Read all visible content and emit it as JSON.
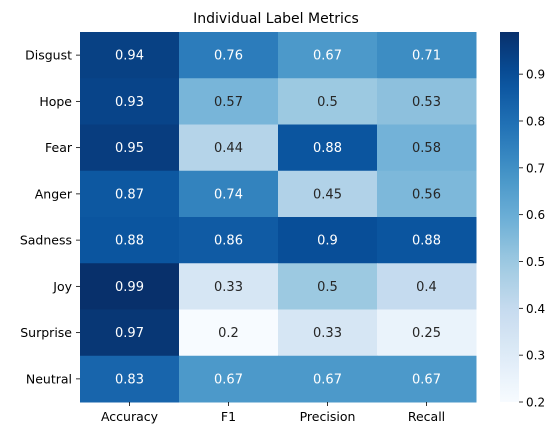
{
  "chart_data": {
    "type": "heatmap",
    "title": "Individual Label Metrics",
    "xlabel": "",
    "ylabel": "",
    "columns": [
      "Accuracy",
      "F1",
      "Precision",
      "Recall"
    ],
    "rows": [
      "Disgust",
      "Hope",
      "Fear",
      "Anger",
      "Sadness",
      "Joy",
      "Surprise",
      "Neutral"
    ],
    "values": [
      [
        0.94,
        0.76,
        0.67,
        0.71
      ],
      [
        0.93,
        0.57,
        0.5,
        0.53
      ],
      [
        0.95,
        0.44,
        0.88,
        0.58
      ],
      [
        0.87,
        0.74,
        0.45,
        0.56
      ],
      [
        0.88,
        0.86,
        0.9,
        0.88
      ],
      [
        0.99,
        0.33,
        0.5,
        0.4
      ],
      [
        0.97,
        0.2,
        0.33,
        0.25
      ],
      [
        0.83,
        0.67,
        0.67,
        0.67
      ]
    ],
    "colorbar": {
      "range": [
        0.2,
        0.99
      ],
      "ticks": [
        "0.2",
        "0.3",
        "0.4",
        "0.5",
        "0.6",
        "0.7",
        "0.8",
        "0.9"
      ],
      "colormap": "Blues"
    },
    "annotations": true,
    "grid": false,
    "legend": "colorbar-right"
  }
}
